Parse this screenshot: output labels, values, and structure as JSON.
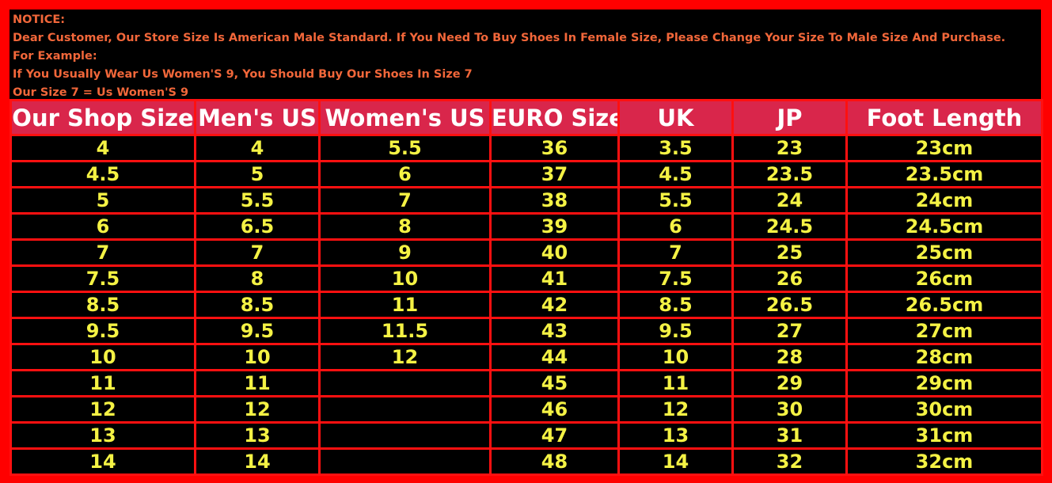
{
  "notice": {
    "lines": [
      "NOTICE:",
      "Dear Customer, Our Store Size Is American Male Standard. If You Need To Buy Shoes In Female Size, Please Change Your Size To Male Size And Purchase.",
      "For Example:",
      "If You Usually Wear Us Women'S 9, You Should Buy Our Shoes In Size 7",
      "Our Size 7 = Us Women'S 9"
    ]
  },
  "table": {
    "header": [
      "Our Shop Size",
      "Men's US",
      "Women's US",
      "EURO Size",
      "UK",
      "JP",
      "Foot Length"
    ],
    "rows": [
      [
        "4",
        "4",
        "5.5",
        "36",
        "3.5",
        "23",
        "23cm"
      ],
      [
        "4.5",
        "5",
        "6",
        "37",
        "4.5",
        "23.5",
        "23.5cm"
      ],
      [
        "5",
        "5.5",
        "7",
        "38",
        "5.5",
        "24",
        "24cm"
      ],
      [
        "6",
        "6.5",
        "8",
        "39",
        "6",
        "24.5",
        "24.5cm"
      ],
      [
        "7",
        "7",
        "9",
        "40",
        "7",
        "25",
        "25cm"
      ],
      [
        "7.5",
        "8",
        "10",
        "41",
        "7.5",
        "26",
        "26cm"
      ],
      [
        "8.5",
        "8.5",
        "11",
        "42",
        "8.5",
        "26.5",
        "26.5cm"
      ],
      [
        "9.5",
        "9.5",
        "11.5",
        "43",
        "9.5",
        "27",
        "27cm"
      ],
      [
        "10",
        "10",
        "12",
        "44",
        "10",
        "28",
        "28cm"
      ],
      [
        "11",
        "11",
        null,
        "45",
        "11",
        "29",
        "29cm"
      ],
      [
        "12",
        "12",
        null,
        "46",
        "12",
        "30",
        "30cm"
      ],
      [
        "13",
        "13",
        null,
        "47",
        "13",
        "31",
        "31cm"
      ],
      [
        "14",
        "14",
        null,
        "48",
        "14",
        "32",
        "32cm"
      ]
    ]
  }
}
